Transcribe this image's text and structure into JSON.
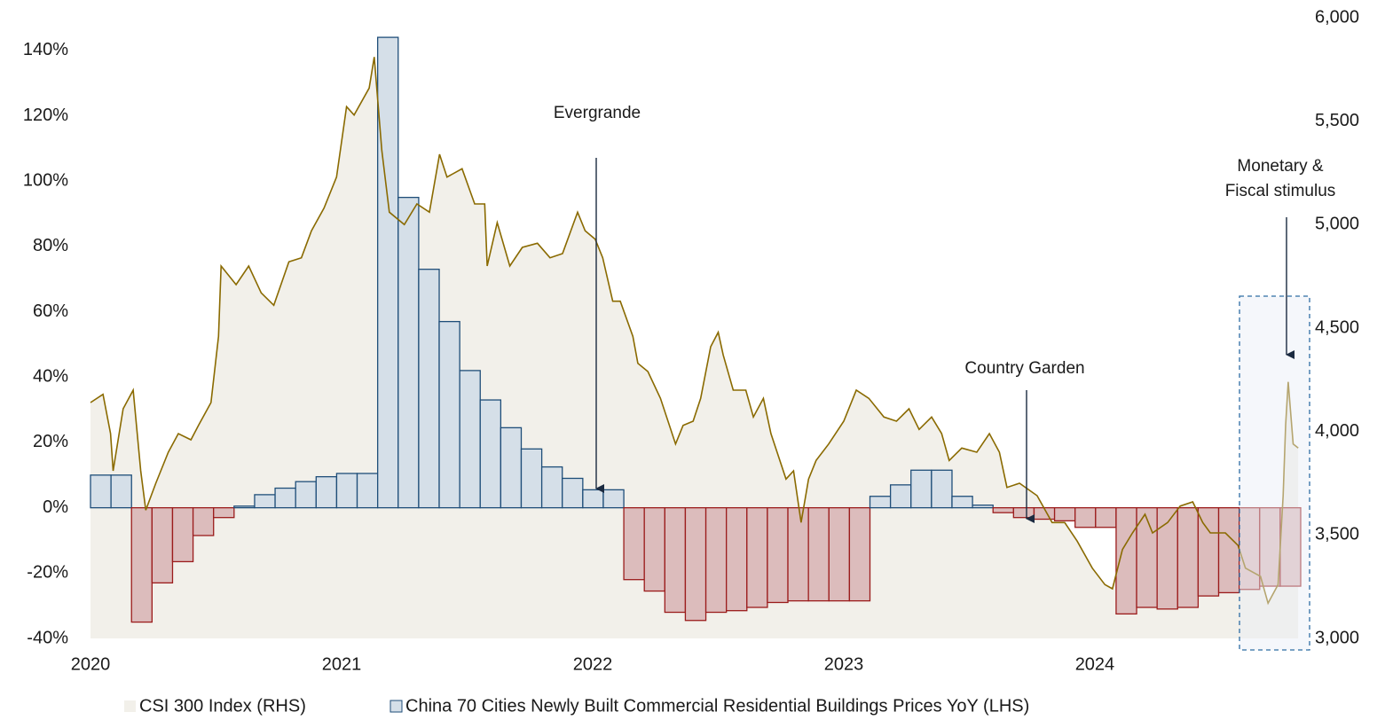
{
  "chart_data": {
    "type": "combo",
    "xlim": [
      2020,
      2024.82
    ],
    "xticks": [
      2020,
      2021,
      2022,
      2023,
      2024
    ],
    "ylim": [
      -40,
      150
    ],
    "yticks": [
      {
        "value": -40,
        "label": "-40%"
      },
      {
        "value": -20,
        "label": "-20%"
      },
      {
        "value": 0,
        "label": "0%"
      },
      {
        "value": 20,
        "label": "20%"
      },
      {
        "value": 40,
        "label": "40%"
      },
      {
        "value": 60,
        "label": "60%"
      },
      {
        "value": 80,
        "label": "80%"
      },
      {
        "value": 100,
        "label": "100%"
      },
      {
        "value": 120,
        "label": "120%"
      },
      {
        "value": 140,
        "label": "140%"
      }
    ],
    "y2lim": [
      3000,
      6000
    ],
    "y2ticks": [
      {
        "value": 3000,
        "label": "3,000"
      },
      {
        "value": 3500,
        "label": "3,500"
      },
      {
        "value": 4000,
        "label": "4,000"
      },
      {
        "value": 4500,
        "label": "4,500"
      },
      {
        "value": 5000,
        "label": "5,000"
      },
      {
        "value": 5500,
        "label": "5,500"
      },
      {
        "value": 6000,
        "label": "6,000"
      }
    ],
    "series": [
      {
        "name": "CSI 300 Index (RHS)",
        "type": "area",
        "axis": "y2",
        "color": "#8a6a00",
        "fill": "#f2f0ea",
        "x": [
          2020.0,
          2020.05,
          2020.08,
          2020.09,
          2020.13,
          2020.17,
          2020.2,
          2020.22,
          2020.26,
          2020.31,
          2020.35,
          2020.4,
          2020.43,
          2020.48,
          2020.51,
          2020.52,
          2020.58,
          2020.63,
          2020.68,
          2020.73,
          2020.79,
          2020.84,
          2020.88,
          2020.93,
          2020.98,
          2021.02,
          2021.05,
          2021.11,
          2021.13,
          2021.16,
          2021.19,
          2021.25,
          2021.3,
          2021.35,
          2021.39,
          2021.42,
          2021.48,
          2021.53,
          2021.57,
          2021.58,
          2021.62,
          2021.67,
          2021.72,
          2021.78,
          2021.83,
          2021.88,
          2021.94,
          2021.97,
          2022.01,
          2022.04,
          2022.08,
          2022.11,
          2022.16,
          2022.18,
          2022.22,
          2022.27,
          2022.33,
          2022.36,
          2022.4,
          2022.43,
          2022.47,
          2022.5,
          2022.52,
          2022.56,
          2022.61,
          2022.64,
          2022.68,
          2022.71,
          2022.77,
          2022.8,
          2022.83,
          2022.86,
          2022.89,
          2022.94,
          2023.0,
          2023.05,
          2023.1,
          2023.16,
          2023.21,
          2023.26,
          2023.3,
          2023.35,
          2023.39,
          2023.42,
          2023.47,
          2023.53,
          2023.58,
          2023.62,
          2023.65,
          2023.7,
          2023.77,
          2023.83,
          2023.88,
          2023.93,
          2023.99,
          2024.04,
          2024.07,
          2024.11,
          2024.15,
          2024.2,
          2024.23,
          2024.29,
          2024.34,
          2024.39,
          2024.43,
          2024.46,
          2024.52,
          2024.57,
          2024.6,
          2024.66,
          2024.69,
          2024.73,
          2024.75,
          2024.76,
          2024.77,
          2024.79,
          2024.81
        ],
        "values": [
          4140,
          4180,
          3990,
          3810,
          4110,
          4200,
          3810,
          3620,
          3750,
          3900,
          3990,
          3960,
          4030,
          4140,
          4460,
          4800,
          4710,
          4800,
          4670,
          4610,
          4820,
          4840,
          4970,
          5080,
          5230,
          5570,
          5530,
          5660,
          5810,
          5360,
          5060,
          5000,
          5100,
          5060,
          5340,
          5230,
          5270,
          5100,
          5100,
          4800,
          5010,
          4800,
          4890,
          4910,
          4840,
          4860,
          5060,
          4970,
          4930,
          4840,
          4630,
          4630,
          4460,
          4330,
          4290,
          4160,
          3940,
          4030,
          4050,
          4160,
          4410,
          4480,
          4370,
          4200,
          4200,
          4070,
          4160,
          3990,
          3770,
          3810,
          3560,
          3770,
          3860,
          3940,
          4050,
          4200,
          4160,
          4070,
          4050,
          4110,
          4010,
          4070,
          3990,
          3860,
          3920,
          3900,
          3990,
          3900,
          3730,
          3750,
          3690,
          3560,
          3560,
          3470,
          3340,
          3260,
          3240,
          3430,
          3510,
          3600,
          3510,
          3560,
          3640,
          3660,
          3560,
          3510,
          3510,
          3450,
          3340,
          3300,
          3170,
          3260,
          3690,
          4030,
          4240,
          3940,
          3920
        ]
      },
      {
        "name": "China 70 Cities Newly Built Commercial Residential Buildings Prices YoY (LHS)",
        "type": "bar",
        "color": "#d5dfe8",
        "edge_color": "#1f4e79",
        "negative_color": "#dcbcbc",
        "negative_edge_color": "#9b1c1c",
        "categories": [
          null,
          null,
          null,
          null,
          null,
          null,
          null,
          null,
          null,
          null,
          null,
          null,
          null,
          null,
          null,
          null,
          null,
          null,
          null,
          null,
          null,
          null,
          null,
          null,
          null,
          null,
          null,
          null,
          null,
          null,
          null,
          null,
          null,
          null,
          null,
          null,
          null,
          null,
          null,
          null,
          null,
          null,
          null,
          null,
          null,
          null,
          null,
          null,
          null,
          null,
          null,
          null,
          null,
          null,
          null,
          null,
          null,
          null,
          null
        ],
        "values": [
          10,
          10,
          -35,
          -23,
          -16.5,
          -8.5,
          -3,
          0.5,
          4,
          6,
          8,
          9.5,
          10.5,
          10.5,
          144,
          95,
          73,
          57,
          42,
          33,
          24.5,
          18,
          12.5,
          9,
          5.5,
          5.5,
          -22,
          -25.5,
          -32,
          -34.5,
          -32,
          -31.5,
          -30.5,
          -29,
          -28.5,
          -28.5,
          -28.5,
          -28.5,
          3.5,
          7,
          11.5,
          11.5,
          3.5,
          0.8,
          -1.5,
          -3,
          -3.5,
          -4,
          -6,
          -6,
          -32.5,
          -30.5,
          -31,
          -30.5,
          -27,
          -26,
          -25,
          -24,
          -24
        ]
      }
    ],
    "annotations": [
      {
        "lines": [
          "Evergrande"
        ]
      },
      {
        "lines": [
          "Country Garden"
        ]
      },
      {
        "lines": [
          "Monetary &",
          "Fiscal stimulus"
        ]
      }
    ]
  }
}
